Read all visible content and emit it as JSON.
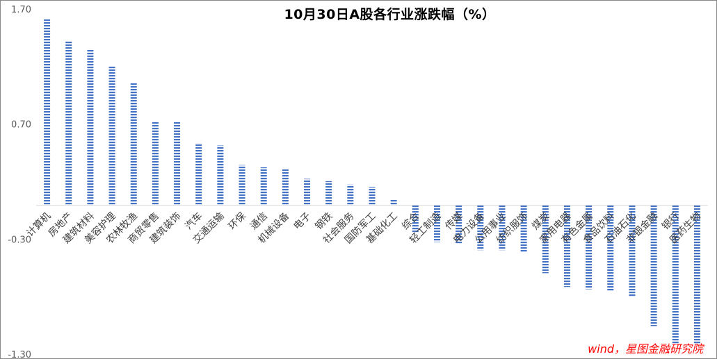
{
  "chart_data": {
    "type": "bar",
    "title": "10月30日A股各行业涨跌幅（%）",
    "xlabel": "",
    "ylabel": "",
    "ylim": [
      -1.3,
      1.7
    ],
    "yticks": [
      1.7,
      0.7,
      -0.3,
      -1.3
    ],
    "ytick_labels": [
      "1.70",
      "0.70",
      "-0.30",
      "-1.30"
    ],
    "categories": [
      "计算机",
      "房地产",
      "建筑材料",
      "美容护理",
      "农林牧渔",
      "商贸零售",
      "建筑装饰",
      "汽车",
      "交通运输",
      "环保",
      "通信",
      "机械设备",
      "电子",
      "钢铁",
      "社会服务",
      "国防军工",
      "基础化工",
      "综合",
      "轻工制造",
      "传媒",
      "电力设备",
      "公用事业",
      "纺织服饰",
      "煤炭",
      "家用电器",
      "有色金属",
      "食品饮料",
      "石油石化",
      "非银金融",
      "银行",
      "医药生物"
    ],
    "values": [
      1.62,
      1.43,
      1.36,
      1.21,
      1.06,
      0.73,
      0.73,
      0.54,
      0.52,
      0.35,
      0.33,
      0.32,
      0.23,
      0.21,
      0.18,
      0.16,
      0.05,
      -0.24,
      -0.32,
      -0.34,
      -0.39,
      -0.39,
      -0.41,
      -0.59,
      -0.71,
      -0.73,
      -0.75,
      -0.79,
      -1.05,
      -1.21,
      -1.21
    ],
    "bar_color": "#4472C4",
    "bar_pattern": "horizontal-stripes",
    "grid": false,
    "legend": "none"
  },
  "source_note": "wind，星图金融研究院"
}
